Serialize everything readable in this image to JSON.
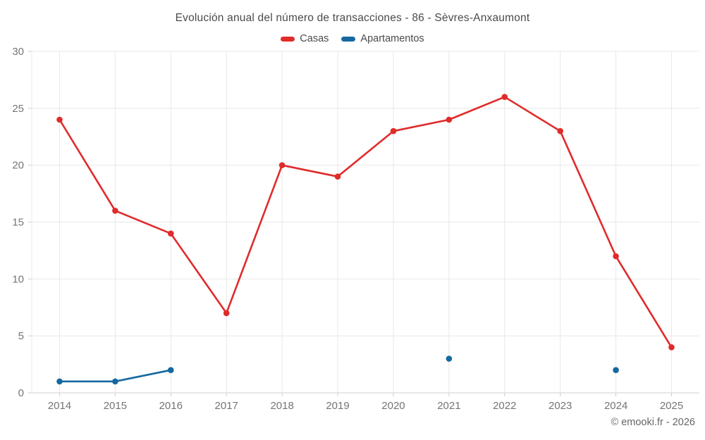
{
  "chart": {
    "title": "Evolución anual del número de transacciones - 86 - Sèvres-Anxaumont",
    "footer": "© emooki.fr - 2026"
  },
  "chart_data": {
    "type": "line",
    "title": "Evolución anual del número de transacciones - 86 - Sèvres-Anxaumont",
    "categories": [
      "2014",
      "2015",
      "2016",
      "2017",
      "2018",
      "2019",
      "2020",
      "2021",
      "2022",
      "2023",
      "2024",
      "2025"
    ],
    "series": [
      {
        "name": "Casas",
        "color": "#e02b2b",
        "values": [
          24,
          16,
          14,
          7,
          20,
          19,
          23,
          24,
          26,
          23,
          12,
          4
        ]
      },
      {
        "name": "Apartamentos",
        "color": "#1569a0",
        "values": [
          1,
          1,
          2,
          null,
          null,
          null,
          null,
          3,
          null,
          null,
          2,
          null
        ]
      }
    ],
    "xlabel": "",
    "ylabel": "",
    "ylim": [
      0,
      30
    ],
    "yticks": [
      0,
      5,
      10,
      15,
      20,
      25,
      30
    ],
    "grid": true,
    "legend_position": "top",
    "colors": {
      "grid_line": "#e8e8e8",
      "axis_line": "#cfcfcf",
      "tick_mark": "#cccccc",
      "tick_label": "#757575",
      "title_text": "#4a4a4a",
      "footer_text": "#666666"
    }
  }
}
